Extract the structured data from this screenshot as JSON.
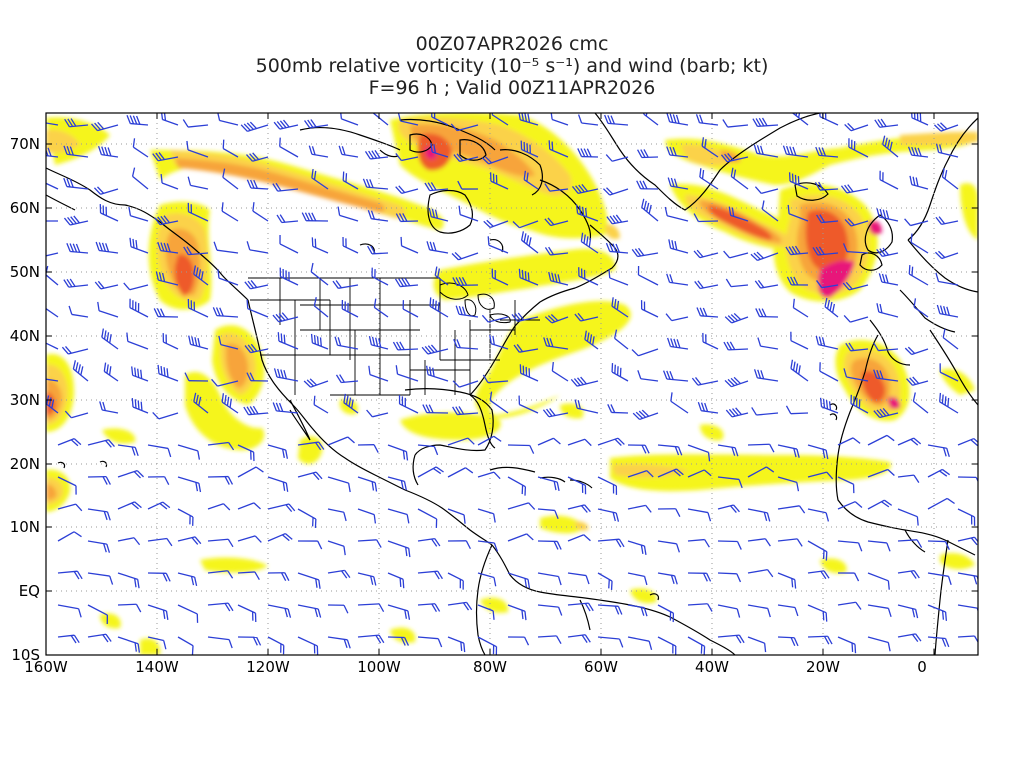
{
  "title": {
    "line1": "00Z07APR2026 cmc",
    "line2": "500mb relative vorticity (10⁻⁵ s⁻¹) and wind (barb; kt)",
    "line3": "F=96 h ; Valid 00Z11APR2026"
  },
  "axes": {
    "lon_ticks": [
      "160W",
      "140W",
      "120W",
      "100W",
      "80W",
      "60W",
      "40W",
      "20W",
      "0"
    ],
    "lat_ticks": [
      "70N",
      "60N",
      "50N",
      "40N",
      "30N",
      "20N",
      "10N",
      "EQ",
      "10S"
    ]
  },
  "colors": {
    "vort_low": "#f5f51a",
    "vort_mid": "#fbd24a",
    "vort_orange": "#f7a43a",
    "vort_red": "#ee5a2a",
    "vort_max": "#e8127a",
    "barb": "#2c3fd6",
    "grid": "#9a9a9a",
    "coast": "#000000"
  }
}
